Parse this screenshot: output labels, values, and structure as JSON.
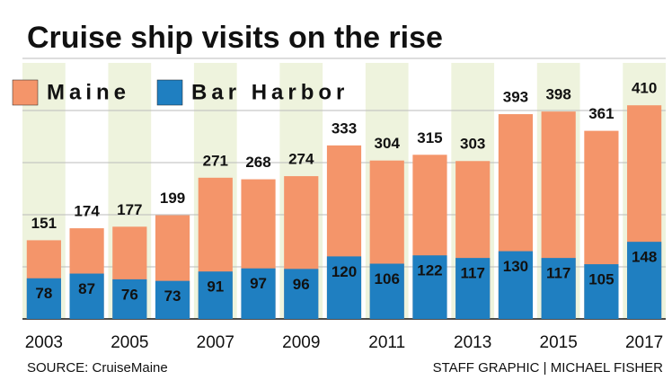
{
  "chart_data": {
    "type": "bar",
    "title": "Cruise ship visits on the rise",
    "categories": [
      "2003",
      null,
      "2005",
      null,
      "2007",
      null,
      "2009",
      null,
      "2011",
      null,
      "2013",
      null,
      "2015",
      null,
      "2017"
    ],
    "series": [
      {
        "name": "Maine",
        "color": "#f4956a",
        "values": [
          151,
          174,
          177,
          199,
          271,
          268,
          274,
          333,
          304,
          315,
          303,
          393,
          398,
          361,
          410
        ]
      },
      {
        "name": "Bar Harbor",
        "color": "#1f7fc1",
        "values": [
          78,
          87,
          76,
          73,
          91,
          97,
          96,
          120,
          106,
          122,
          117,
          130,
          117,
          105,
          148
        ]
      }
    ],
    "ylim": [
      0,
      500
    ],
    "yticks": [
      0,
      100,
      200,
      300,
      400,
      500
    ],
    "grid": true,
    "legend": "top-left",
    "source": "SOURCE: CruiseMaine",
    "credit": "STAFF GRAPHIC | MICHAEL FISHER"
  }
}
